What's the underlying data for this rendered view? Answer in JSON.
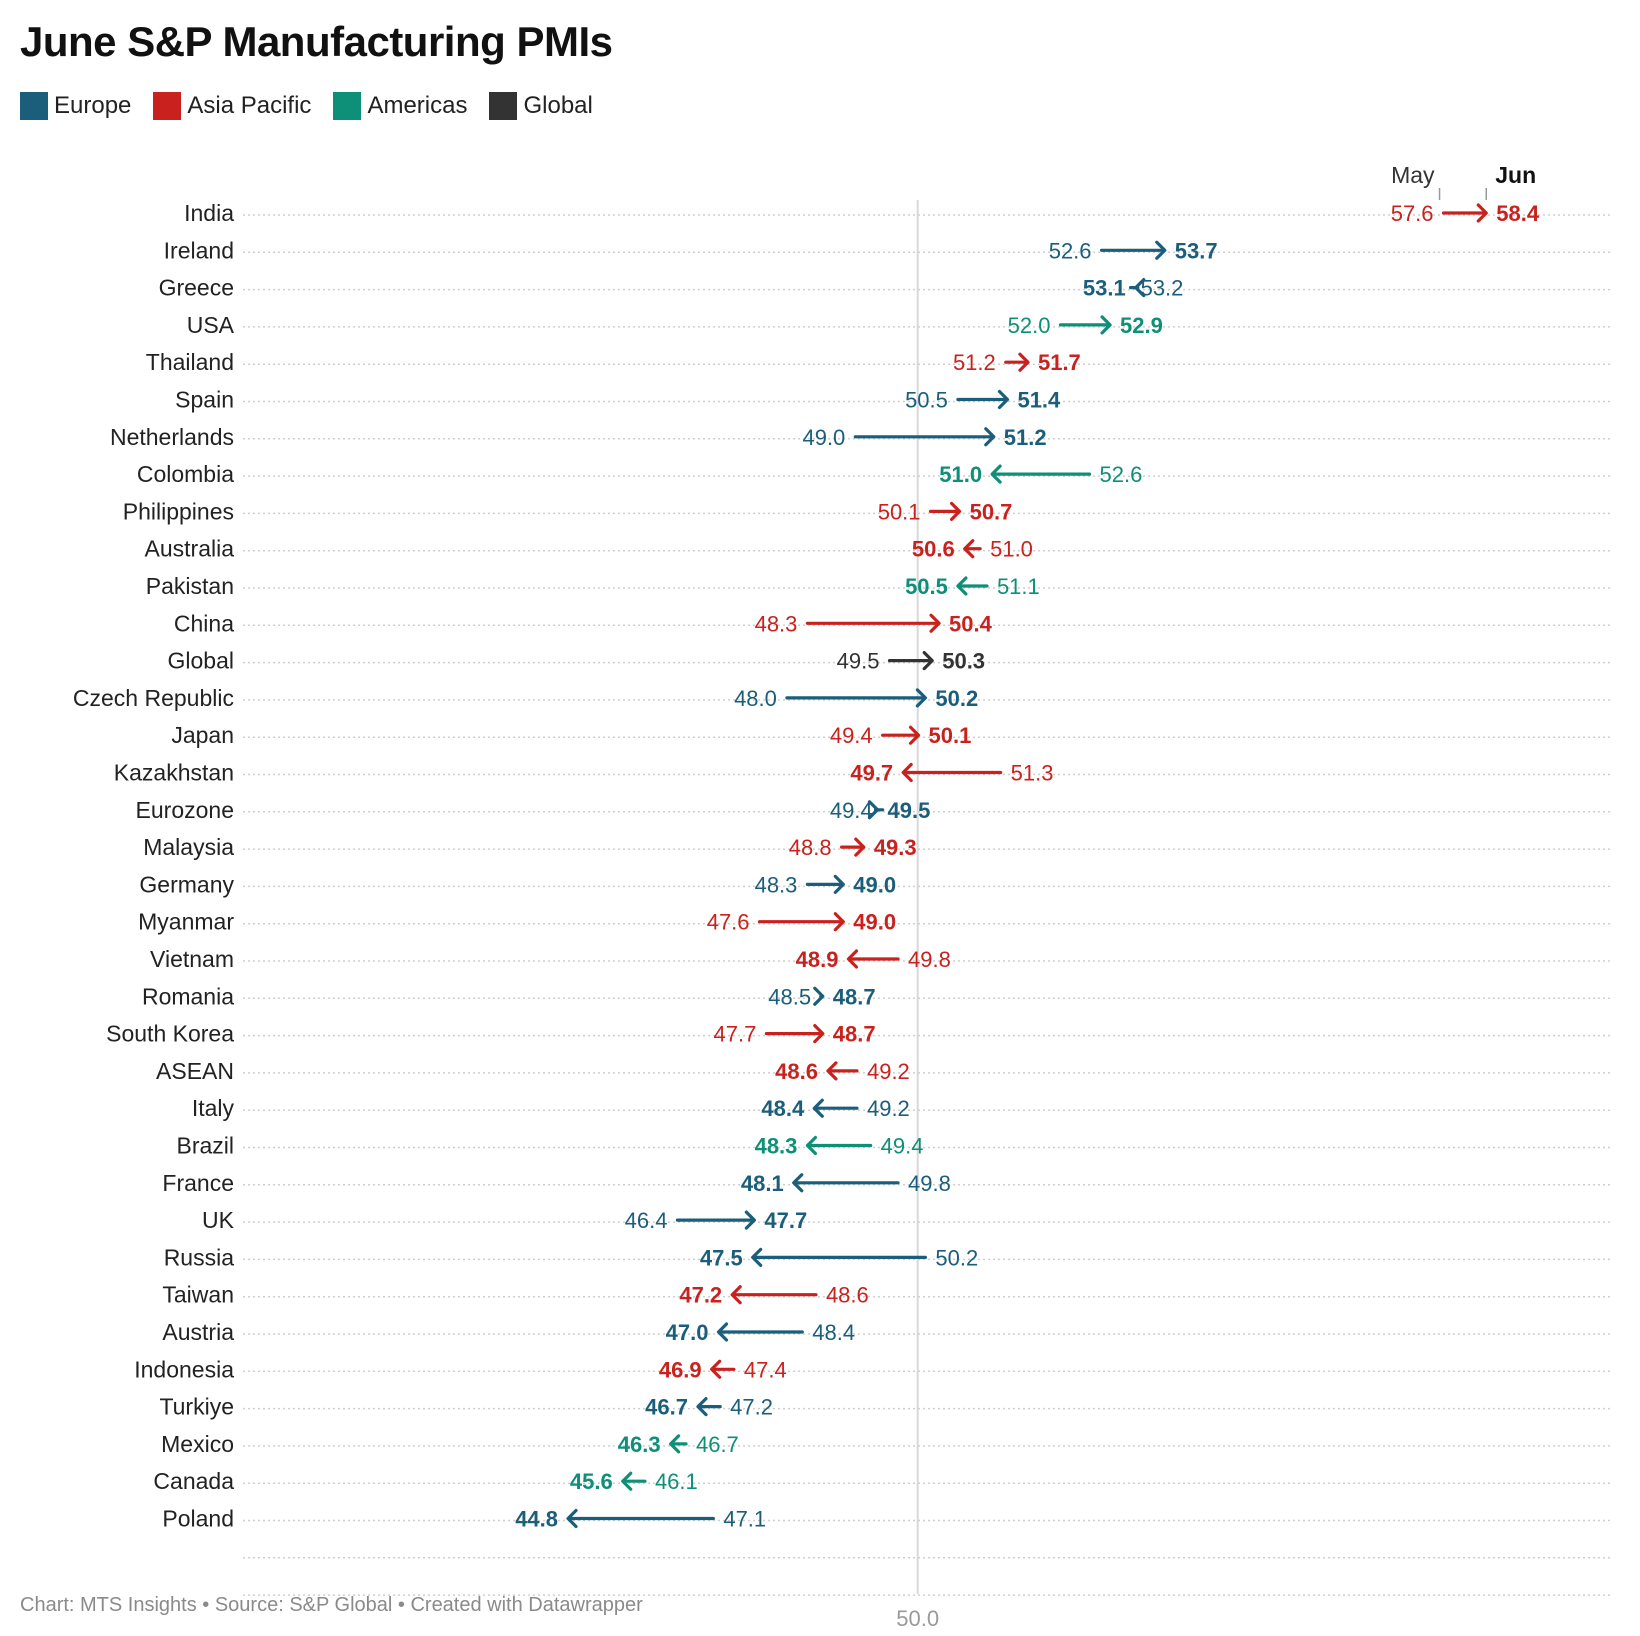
{
  "title": "June S&P Manufacturing PMIs",
  "legend": [
    {
      "label": "Europe",
      "color": "#1b5e7b"
    },
    {
      "label": "Asia Pacific",
      "color": "#c9221e"
    },
    {
      "label": "Americas",
      "color": "#0e8f77"
    },
    {
      "label": "Global",
      "color": "#333333"
    }
  ],
  "footer": "Chart: MTS Insights • Source: S&P Global • Created with Datawrapper",
  "chart_data": {
    "type": "arrow",
    "title": "June S&P Manufacturing PMIs",
    "header_start": "May",
    "header_end": "Jun",
    "reference_line": 50.0,
    "reference_label": "50.0",
    "xlim": [
      44.0,
      58.9
    ],
    "series": [
      "May",
      "Jun"
    ],
    "rows": [
      {
        "label": "India",
        "region": "Asia Pacific",
        "may": 57.6,
        "jun": 58.4,
        "may_label": "57.6",
        "jun_label": "58.4"
      },
      {
        "label": "Ireland",
        "region": "Europe",
        "may": 52.6,
        "jun": 53.7,
        "may_label": "52.6",
        "jun_label": "53.7"
      },
      {
        "label": "Greece",
        "region": "Europe",
        "may": 53.2,
        "jun": 53.1,
        "may_label": "53.2",
        "jun_label": "53.1"
      },
      {
        "label": "USA",
        "region": "Americas",
        "may": 52.0,
        "jun": 52.9,
        "may_label": "52.0",
        "jun_label": "52.9"
      },
      {
        "label": "Thailand",
        "region": "Asia Pacific",
        "may": 51.2,
        "jun": 51.7,
        "may_label": "51.2",
        "jun_label": "51.7"
      },
      {
        "label": "Spain",
        "region": "Europe",
        "may": 50.5,
        "jun": 51.4,
        "may_label": "50.5",
        "jun_label": "51.4"
      },
      {
        "label": "Netherlands",
        "region": "Europe",
        "may": 49.0,
        "jun": 51.2,
        "may_label": "49.0",
        "jun_label": "51.2"
      },
      {
        "label": "Colombia",
        "region": "Americas",
        "may": 52.6,
        "jun": 51.0,
        "may_label": "52.6",
        "jun_label": "51.0"
      },
      {
        "label": "Philippines",
        "region": "Asia Pacific",
        "may": 50.1,
        "jun": 50.7,
        "may_label": "50.1",
        "jun_label": "50.7"
      },
      {
        "label": "Australia",
        "region": "Asia Pacific",
        "may": 51.0,
        "jun": 50.6,
        "may_label": "51.0",
        "jun_label": "50.6"
      },
      {
        "label": "Pakistan",
        "region": "Americas",
        "may": 51.1,
        "jun": 50.5,
        "may_label": "51.1",
        "jun_label": "50.5"
      },
      {
        "label": "China",
        "region": "Asia Pacific",
        "may": 48.3,
        "jun": 50.4,
        "may_label": "48.3",
        "jun_label": "50.4"
      },
      {
        "label": "Global",
        "region": "Global",
        "may": 49.5,
        "jun": 50.3,
        "may_label": "49.5",
        "jun_label": "50.3"
      },
      {
        "label": "Czech Republic",
        "region": "Europe",
        "may": 48.0,
        "jun": 50.2,
        "may_label": "48.0",
        "jun_label": "50.2"
      },
      {
        "label": "Japan",
        "region": "Asia Pacific",
        "may": 49.4,
        "jun": 50.1,
        "may_label": "49.4",
        "jun_label": "50.1"
      },
      {
        "label": "Kazakhstan",
        "region": "Asia Pacific",
        "may": 51.3,
        "jun": 49.7,
        "may_label": "51.3",
        "jun_label": "49.7"
      },
      {
        "label": "Eurozone",
        "region": "Europe",
        "may": 49.4,
        "jun": 49.5,
        "may_label": "49.4",
        "jun_label": "49.5"
      },
      {
        "label": "Malaysia",
        "region": "Asia Pacific",
        "may": 48.8,
        "jun": 49.3,
        "may_label": "48.8",
        "jun_label": "49.3"
      },
      {
        "label": "Germany",
        "region": "Europe",
        "may": 48.3,
        "jun": 49.0,
        "may_label": "48.3",
        "jun_label": "49.0"
      },
      {
        "label": "Myanmar",
        "region": "Asia Pacific",
        "may": 47.6,
        "jun": 49.0,
        "may_label": "47.6",
        "jun_label": "49.0"
      },
      {
        "label": "Vietnam",
        "region": "Asia Pacific",
        "may": 49.8,
        "jun": 48.9,
        "may_label": "49.8",
        "jun_label": "48.9"
      },
      {
        "label": "Romania",
        "region": "Europe",
        "may": 48.5,
        "jun": 48.7,
        "may_label": "48.5",
        "jun_label": "48.7"
      },
      {
        "label": "South Korea",
        "region": "Asia Pacific",
        "may": 47.7,
        "jun": 48.7,
        "may_label": "47.7",
        "jun_label": "48.7"
      },
      {
        "label": "ASEAN",
        "region": "Asia Pacific",
        "may": 49.2,
        "jun": 48.6,
        "may_label": "49.2",
        "jun_label": "48.6"
      },
      {
        "label": "Italy",
        "region": "Europe",
        "may": 49.2,
        "jun": 48.4,
        "may_label": "49.2",
        "jun_label": "48.4"
      },
      {
        "label": "Brazil",
        "region": "Americas",
        "may": 49.4,
        "jun": 48.3,
        "may_label": "49.4",
        "jun_label": "48.3"
      },
      {
        "label": "France",
        "region": "Europe",
        "may": 49.8,
        "jun": 48.1,
        "may_label": "49.8",
        "jun_label": "48.1"
      },
      {
        "label": "UK",
        "region": "Europe",
        "may": 46.4,
        "jun": 47.7,
        "may_label": "46.4",
        "jun_label": "47.7"
      },
      {
        "label": "Russia",
        "region": "Europe",
        "may": 50.2,
        "jun": 47.5,
        "may_label": "50.2",
        "jun_label": "47.5"
      },
      {
        "label": "Taiwan",
        "region": "Asia Pacific",
        "may": 48.6,
        "jun": 47.2,
        "may_label": "48.6",
        "jun_label": "47.2"
      },
      {
        "label": "Austria",
        "region": "Europe",
        "may": 48.4,
        "jun": 47.0,
        "may_label": "48.4",
        "jun_label": "47.0"
      },
      {
        "label": "Indonesia",
        "region": "Asia Pacific",
        "may": 47.4,
        "jun": 46.9,
        "may_label": "47.4",
        "jun_label": "46.9"
      },
      {
        "label": "Turkiye",
        "region": "Europe",
        "may": 47.2,
        "jun": 46.7,
        "may_label": "47.2",
        "jun_label": "46.7"
      },
      {
        "label": "Mexico",
        "region": "Americas",
        "may": 46.7,
        "jun": 46.3,
        "may_label": "46.7",
        "jun_label": "46.3"
      },
      {
        "label": "Canada",
        "region": "Americas",
        "may": 46.1,
        "jun": 45.6,
        "may_label": "46.1",
        "jun_label": "45.6"
      },
      {
        "label": "Poland",
        "region": "Europe",
        "may": 47.1,
        "jun": 44.8,
        "may_label": "47.1",
        "jun_label": "44.8"
      }
    ]
  }
}
